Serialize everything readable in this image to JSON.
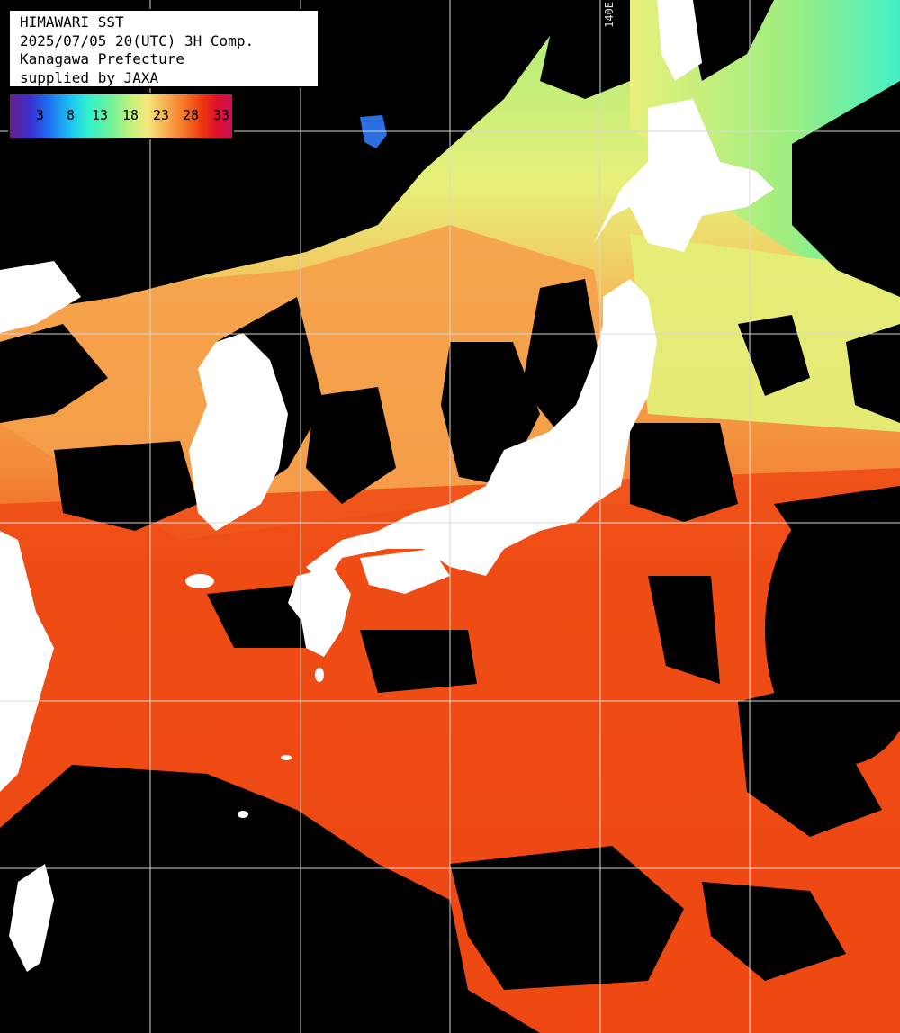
{
  "header": {
    "line1": "HIMAWARI SST",
    "line2": "2025/07/05 20(UTC) 3H Comp.",
    "line3": "Kanagawa Prefecture",
    "line4": "supplied by JAXA"
  },
  "legend": {
    "labels": [
      "3",
      "8",
      "13",
      "18",
      "23",
      "28",
      "33"
    ],
    "colors": [
      "#6a1f8c",
      "#1e6cf0",
      "#30f0d0",
      "#c8f27a",
      "#f7b050",
      "#ef3a10",
      "#c8105a"
    ]
  },
  "grid": {
    "lon_label": "140E"
  },
  "colors": {
    "land": "#ffffff",
    "cloud": "#000000",
    "sea_warm": "#ef3a10",
    "sea_mid": "#f7a050",
    "sea_cool": "#e8f07a",
    "sea_cold": "#5af0b0",
    "grid": "#d8d8d8"
  }
}
